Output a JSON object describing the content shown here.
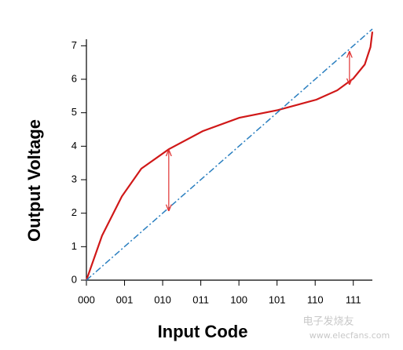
{
  "chart_data": {
    "type": "line",
    "xlabel": "Input Code",
    "ylabel": "Output Voltage",
    "xlim": [
      0,
      7.5
    ],
    "ylim": [
      0,
      7.5
    ],
    "xticks": [
      {
        "value": 0,
        "label": "000"
      },
      {
        "value": 1,
        "label": "001"
      },
      {
        "value": 2,
        "label": "010"
      },
      {
        "value": 3,
        "label": "011"
      },
      {
        "value": 4,
        "label": "100"
      },
      {
        "value": 5,
        "label": "101"
      },
      {
        "value": 6,
        "label": "110"
      },
      {
        "value": 7,
        "label": "111"
      }
    ],
    "yticks": [
      0,
      1,
      2,
      3,
      4,
      5,
      6,
      7
    ],
    "series": [
      {
        "color": "#d01818",
        "style": "solid",
        "x": [
          0,
          0.41,
          0.93,
          1.44,
          2.16,
          3.05,
          4.01,
          5.02,
          6.03,
          6.58,
          7.0,
          7.3,
          7.45,
          7.5
        ],
        "values": [
          0,
          1.33,
          2.5,
          3.33,
          3.91,
          4.45,
          4.85,
          5.08,
          5.39,
          5.67,
          6.02,
          6.44,
          6.96,
          7.42
        ]
      },
      {
        "color": "#2a7fc0",
        "style": "dashdot",
        "x": [
          0,
          7.5
        ],
        "values": [
          0,
          7.5
        ]
      }
    ],
    "arrows": [
      {
        "x": 2.16,
        "from": 3.88,
        "to": 2.08
      },
      {
        "x": 6.9,
        "from": 6.82,
        "to": 5.85
      }
    ],
    "arrow_color": "#e03030",
    "watermark": [
      "电子发烧友",
      "www.elecfans.com"
    ]
  }
}
